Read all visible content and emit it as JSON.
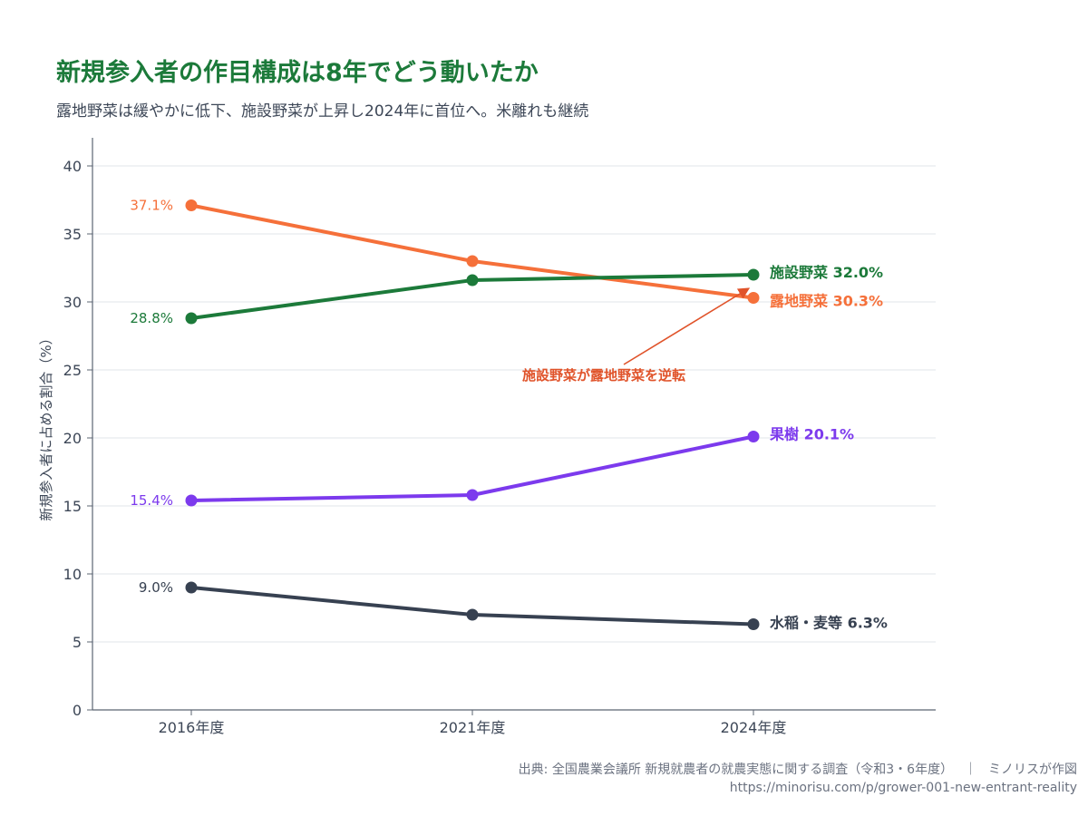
{
  "title": "新規参入者の作目構成は8年でどう動いたか",
  "subtitle": "露地野菜は緩やかに低下、施設野菜が上昇し2024年に首位へ。米離れも継続",
  "source_line": "出典: 全国農業会議所 新規就農者の就農実態に関する調査（令和3・6年度）",
  "separator": "｜",
  "credit": "ミノリスが作図",
  "url": "https://minorisu.com/p/grower-001-new-entrant-reality",
  "chart_data": {
    "type": "line",
    "title": "新規参入者の作目構成は8年でどう動いたか",
    "subtitle": "露地野菜は緩やかに低下、施設野菜が上昇し2024年に首位へ。米離れも継続",
    "xlabel": "",
    "ylabel": "新規参入者に占める割合（%）",
    "categories": [
      "2016年度",
      "2021年度",
      "2024年度"
    ],
    "ylim": [
      0,
      40
    ],
    "yticks": [
      0,
      5,
      10,
      15,
      20,
      25,
      30,
      35,
      40
    ],
    "grid": true,
    "legend": "none (end-of-line labels)",
    "series": [
      {
        "name": "露地野菜",
        "values": [
          37.1,
          33.0,
          30.3
        ],
        "color": "#f5703a",
        "start_label": "37.1%",
        "end_label": "露地野菜 30.3%"
      },
      {
        "name": "施設野菜",
        "values": [
          28.8,
          31.6,
          32.0
        ],
        "color": "#1c7a3a",
        "start_label": "28.8%",
        "end_label": "施設野菜 32.0%"
      },
      {
        "name": "果樹",
        "values": [
          15.4,
          15.8,
          20.1
        ],
        "color": "#7c3aed",
        "start_label": "15.4%",
        "end_label": "果樹 20.1%"
      },
      {
        "name": "水稲・麦等",
        "values": [
          9.0,
          7.0,
          6.3
        ],
        "color": "#374151",
        "start_label": "9.0%",
        "end_label": "水稲・麦等 6.3%"
      }
    ],
    "annotation": {
      "text": "施設野菜が露地野菜を逆転",
      "color": "#e0532a"
    }
  }
}
